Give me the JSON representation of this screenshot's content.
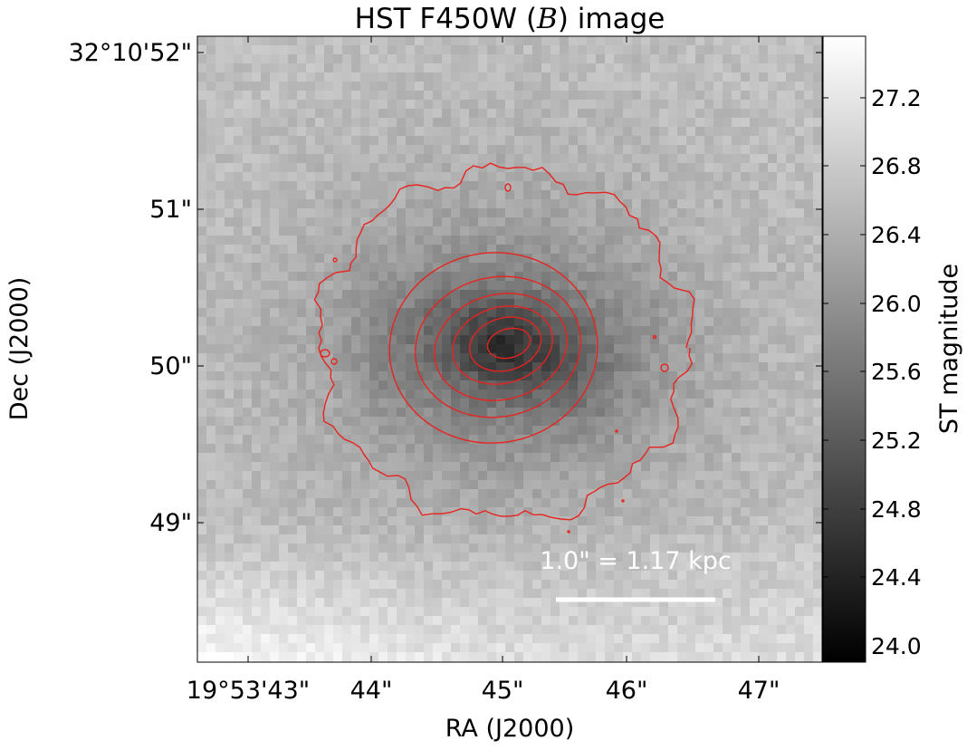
{
  "figure": {
    "title_prefix": "HST F450W (",
    "title_italic": "B",
    "title_suffix": ") image",
    "xlabel": "RA (J2000)",
    "ylabel": "Dec (J2000)",
    "x_ticks": [
      "19°53'43\"",
      "44\"",
      "45\"",
      "46\"",
      "47\""
    ],
    "y_ticks": [
      "32°10'52\"",
      "51\"",
      "50\"",
      "49\""
    ],
    "colorbar": {
      "label": "ST magnitude",
      "ticks": [
        "27.2",
        "26.8",
        "26.4",
        "26.0",
        "25.6",
        "25.2",
        "24.8",
        "24.4",
        "24.0"
      ],
      "colormap": "gray",
      "range": [
        23.87,
        27.53
      ]
    },
    "scale_bar": {
      "label": "1.0\" = 1.17 kpc",
      "arcsec": 1.0,
      "kpc": 1.17,
      "color": "#ffffff"
    },
    "contour_color": "#e8231f",
    "contour_levels": 7
  }
}
